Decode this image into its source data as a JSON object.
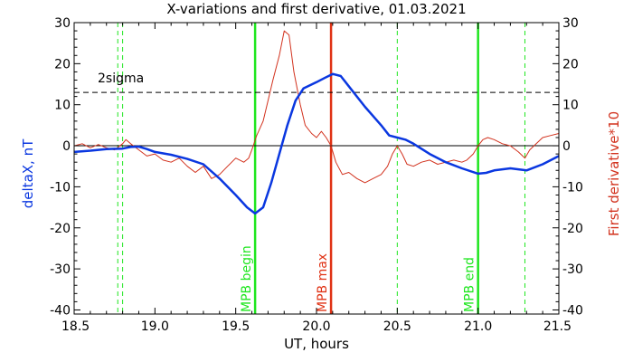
{
  "chart_data": {
    "type": "line",
    "title": "X-variations and first derivative, 01.03.2021",
    "xlabel": "UT, hours",
    "ylabel_left": "deltaX, nT",
    "ylabel_right": "First derivative*10",
    "xlim": [
      18.5,
      21.5
    ],
    "ylim": [
      -41,
      30
    ],
    "x_ticks": [
      18.5,
      19.0,
      19.5,
      20.0,
      20.5,
      21.0,
      21.5
    ],
    "x_tick_labels": [
      "18.5",
      "19.0",
      "19.5",
      "20.0",
      "20.5",
      "21.0",
      "21.5"
    ],
    "y_ticks": [
      30,
      20,
      10,
      0,
      -10,
      -20,
      -30,
      -40
    ],
    "y_tick_labels": [
      "30",
      "20",
      "10",
      "0",
      "-10",
      "-20",
      "-30",
      "-40"
    ],
    "grid": false,
    "zero_line": 0,
    "colors": {
      "deltaX": "#0a37e0",
      "derivative": "#d2321e",
      "marker_green": "#1ee61e",
      "marker_red": "#e03214",
      "axes": "#000000"
    },
    "threshold": {
      "label": "2sigma",
      "y": 13
    },
    "markers": [
      {
        "label": "MPB begin",
        "x": 19.62,
        "color": "#1ee61e",
        "style": "solid"
      },
      {
        "label": "MPB max",
        "x": 20.09,
        "color": "#e03214",
        "style": "solid"
      },
      {
        "label": "MPB end",
        "x": 21.0,
        "color": "#1ee61e",
        "style": "solid"
      }
    ],
    "dashed_markers": [
      18.77,
      18.8,
      20.5,
      21.29
    ],
    "series": [
      {
        "name": "deltaX, nT",
        "axis": "left",
        "points": [
          [
            18.5,
            -1.5
          ],
          [
            18.6,
            -1.2
          ],
          [
            18.7,
            -0.8
          ],
          [
            18.8,
            -0.7
          ],
          [
            18.85,
            -0.3
          ],
          [
            18.9,
            -0.2
          ],
          [
            18.95,
            -0.8
          ],
          [
            19.0,
            -1.5
          ],
          [
            19.1,
            -2.2
          ],
          [
            19.2,
            -3.2
          ],
          [
            19.3,
            -4.5
          ],
          [
            19.4,
            -8.0
          ],
          [
            19.5,
            -12.0
          ],
          [
            19.57,
            -15.0
          ],
          [
            19.62,
            -16.5
          ],
          [
            19.67,
            -15.0
          ],
          [
            19.72,
            -9.0
          ],
          [
            19.77,
            -2.0
          ],
          [
            19.82,
            5.0
          ],
          [
            19.87,
            11.0
          ],
          [
            19.92,
            14.0
          ],
          [
            20.0,
            15.5
          ],
          [
            20.05,
            16.5
          ],
          [
            20.1,
            17.5
          ],
          [
            20.15,
            17.0
          ],
          [
            20.2,
            14.5
          ],
          [
            20.3,
            9.5
          ],
          [
            20.4,
            5.0
          ],
          [
            20.45,
            2.5
          ],
          [
            20.5,
            2.0
          ],
          [
            20.55,
            1.5
          ],
          [
            20.6,
            0.5
          ],
          [
            20.7,
            -2.0
          ],
          [
            20.8,
            -4.0
          ],
          [
            20.9,
            -5.5
          ],
          [
            21.0,
            -6.8
          ],
          [
            21.05,
            -6.6
          ],
          [
            21.1,
            -6.0
          ],
          [
            21.2,
            -5.5
          ],
          [
            21.3,
            -6.0
          ],
          [
            21.4,
            -4.5
          ],
          [
            21.5,
            -2.5
          ]
        ]
      },
      {
        "name": "First derivative*10",
        "axis": "right",
        "points": [
          [
            18.5,
            0.0
          ],
          [
            18.55,
            0.5
          ],
          [
            18.6,
            -0.5
          ],
          [
            18.65,
            0.3
          ],
          [
            18.7,
            -0.5
          ],
          [
            18.75,
            -1.0
          ],
          [
            18.8,
            0.5
          ],
          [
            18.82,
            1.5
          ],
          [
            18.85,
            0.5
          ],
          [
            18.9,
            -1.0
          ],
          [
            18.95,
            -2.5
          ],
          [
            19.0,
            -2.0
          ],
          [
            19.05,
            -3.5
          ],
          [
            19.1,
            -4.0
          ],
          [
            19.15,
            -3.0
          ],
          [
            19.2,
            -5.0
          ],
          [
            19.25,
            -6.5
          ],
          [
            19.3,
            -5.0
          ],
          [
            19.35,
            -8.0
          ],
          [
            19.4,
            -7.0
          ],
          [
            19.45,
            -5.0
          ],
          [
            19.5,
            -3.0
          ],
          [
            19.55,
            -4.0
          ],
          [
            19.58,
            -3.0
          ],
          [
            19.6,
            -1.0
          ],
          [
            19.63,
            2.5
          ],
          [
            19.67,
            6.0
          ],
          [
            19.7,
            11.0
          ],
          [
            19.73,
            16.0
          ],
          [
            19.77,
            22.0
          ],
          [
            19.8,
            28.0
          ],
          [
            19.83,
            27.0
          ],
          [
            19.86,
            18.0
          ],
          [
            19.9,
            10.0
          ],
          [
            19.93,
            5.0
          ],
          [
            19.97,
            3.0
          ],
          [
            20.0,
            2.0
          ],
          [
            20.03,
            3.5
          ],
          [
            20.06,
            2.0
          ],
          [
            20.09,
            0.0
          ],
          [
            20.12,
            -4.0
          ],
          [
            20.16,
            -7.0
          ],
          [
            20.2,
            -6.5
          ],
          [
            20.25,
            -8.0
          ],
          [
            20.3,
            -9.0
          ],
          [
            20.35,
            -8.0
          ],
          [
            20.4,
            -7.0
          ],
          [
            20.44,
            -5.0
          ],
          [
            20.47,
            -2.0
          ],
          [
            20.5,
            0.0
          ],
          [
            20.53,
            -2.0
          ],
          [
            20.56,
            -4.5
          ],
          [
            20.6,
            -5.0
          ],
          [
            20.65,
            -4.0
          ],
          [
            20.7,
            -3.5
          ],
          [
            20.75,
            -4.5
          ],
          [
            20.8,
            -4.0
          ],
          [
            20.85,
            -3.5
          ],
          [
            20.9,
            -4.0
          ],
          [
            20.93,
            -3.5
          ],
          [
            20.97,
            -2.0
          ],
          [
            21.0,
            0.0
          ],
          [
            21.03,
            1.5
          ],
          [
            21.06,
            2.0
          ],
          [
            21.1,
            1.5
          ],
          [
            21.15,
            0.5
          ],
          [
            21.2,
            0.0
          ],
          [
            21.25,
            -1.5
          ],
          [
            21.29,
            -3.0
          ],
          [
            21.32,
            -1.0
          ],
          [
            21.36,
            0.5
          ],
          [
            21.4,
            2.0
          ],
          [
            21.45,
            2.5
          ],
          [
            21.5,
            3.0
          ]
        ]
      }
    ]
  }
}
